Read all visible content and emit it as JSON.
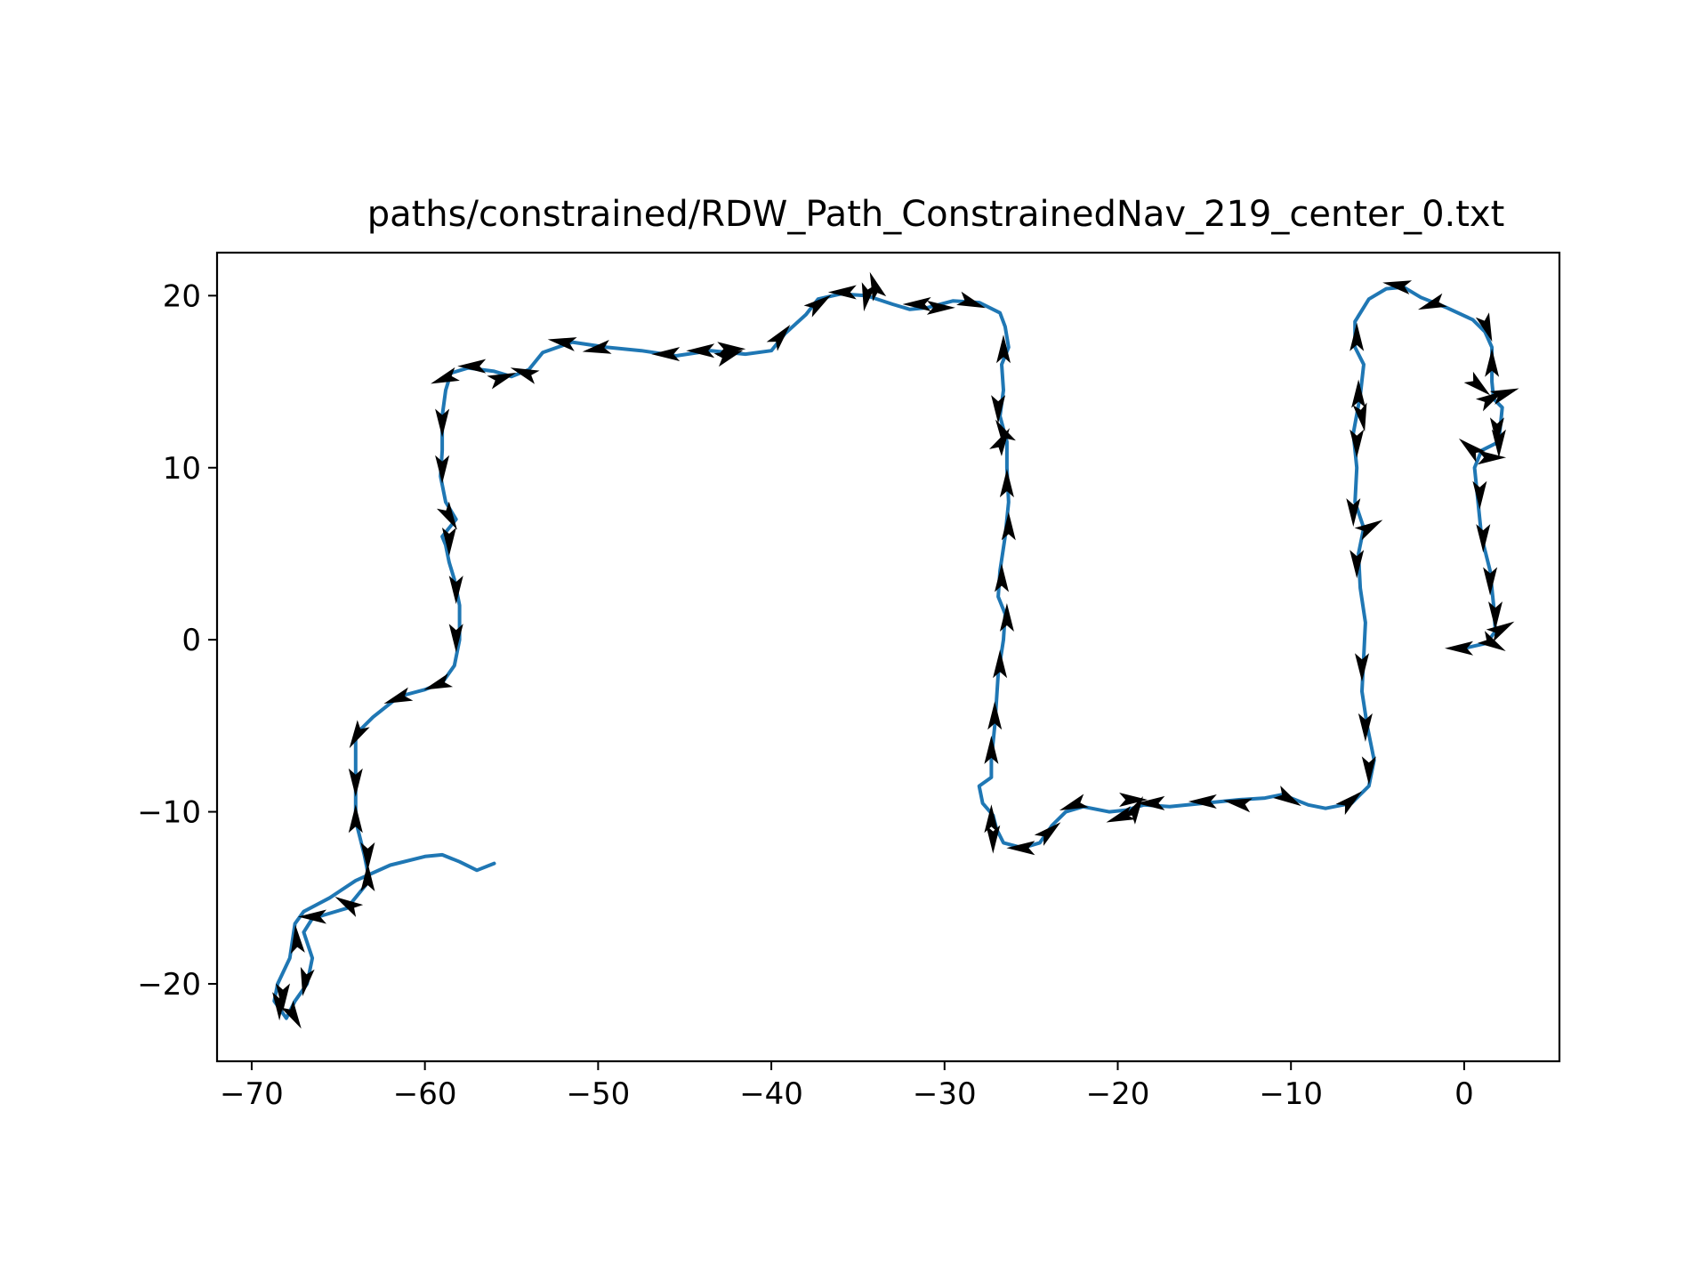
{
  "chart_data": {
    "type": "line",
    "title": "paths/constrained/RDW_Path_ConstrainedNav_219_center_0.txt",
    "xlabel": "",
    "ylabel": "",
    "xlim": [
      -72,
      5.5
    ],
    "ylim": [
      -24.5,
      22.5
    ],
    "xticks": [
      -70,
      -60,
      -50,
      -40,
      -30,
      -20,
      -10,
      0
    ],
    "yticks": [
      -20,
      -10,
      0,
      10,
      20
    ],
    "xtick_labels": [
      "−70",
      "−60",
      "−50",
      "−40",
      "−30",
      "−20",
      "−10",
      "0"
    ],
    "ytick_labels": [
      "−20",
      "−10",
      "0",
      "10",
      "20"
    ],
    "grid": false,
    "line_color": "#1f77b4",
    "arrow_color": "#000000",
    "series": [
      {
        "path": [
          [
            -56,
            -13
          ],
          [
            -57,
            -13.4
          ],
          [
            -58,
            -12.9
          ],
          [
            -59,
            -12.5
          ],
          [
            -60,
            -12.6
          ],
          [
            -62,
            -13.1
          ],
          [
            -64,
            -14
          ],
          [
            -65.5,
            -15
          ],
          [
            -67,
            -15.8
          ],
          [
            -67.5,
            -16.5
          ],
          [
            -67.8,
            -18.5
          ],
          [
            -68.5,
            -20
          ],
          [
            -68.7,
            -21
          ],
          [
            -68,
            -22
          ],
          [
            -67.5,
            -21
          ],
          [
            -66.8,
            -20
          ],
          [
            -66.5,
            -18.5
          ],
          [
            -67,
            -17
          ],
          [
            -66.5,
            -16.2
          ],
          [
            -64.5,
            -15.6
          ],
          [
            -63.2,
            -14
          ],
          [
            -63.5,
            -12.5
          ],
          [
            -64,
            -10.5
          ],
          [
            -64,
            -9
          ],
          [
            -64,
            -7
          ],
          [
            -64,
            -5.5
          ],
          [
            -63,
            -4.5
          ],
          [
            -61.5,
            -3.3
          ],
          [
            -60,
            -2.9
          ],
          [
            -59,
            -2.5
          ],
          [
            -58.3,
            -1.5
          ],
          [
            -58,
            0
          ],
          [
            -58,
            2
          ],
          [
            -58.3,
            3.5
          ],
          [
            -58.6,
            4.5
          ],
          [
            -58.8,
            5.5
          ],
          [
            -59,
            6
          ],
          [
            -58.2,
            7
          ],
          [
            -58.8,
            8
          ],
          [
            -59.1,
            9.5
          ],
          [
            -59,
            11
          ],
          [
            -59,
            13
          ],
          [
            -58.8,
            14.5
          ],
          [
            -58.5,
            15.5
          ],
          [
            -57.5,
            15.8
          ],
          [
            -56,
            15.6
          ],
          [
            -55,
            15.3
          ],
          [
            -54,
            15.7
          ],
          [
            -53.2,
            16.7
          ],
          [
            -51.5,
            17.3
          ],
          [
            -49.5,
            17
          ],
          [
            -47.5,
            16.8
          ],
          [
            -45.5,
            16.5
          ],
          [
            -43.5,
            16.8
          ],
          [
            -41.5,
            16.6
          ],
          [
            -40,
            16.8
          ],
          [
            -39.2,
            17.8
          ],
          [
            -38,
            18.9
          ],
          [
            -37.3,
            19.8
          ],
          [
            -36,
            20.1
          ],
          [
            -34.5,
            20
          ],
          [
            -33,
            19.5
          ],
          [
            -32,
            19.2
          ],
          [
            -31,
            19.3
          ],
          [
            -29.5,
            19.7
          ],
          [
            -28,
            19.6
          ],
          [
            -26.8,
            19
          ],
          [
            -26.5,
            18.2
          ],
          [
            -26.3,
            17
          ],
          [
            -26.7,
            16
          ],
          [
            -26.6,
            14.5
          ],
          [
            -26.8,
            13
          ],
          [
            -26.4,
            11.5
          ],
          [
            -26.4,
            10
          ],
          [
            -26.3,
            8
          ],
          [
            -26.5,
            6
          ],
          [
            -26.8,
            4
          ],
          [
            -26.9,
            2.5
          ],
          [
            -26.5,
            1.5
          ],
          [
            -26.6,
            0
          ],
          [
            -26.9,
            -2
          ],
          [
            -27,
            -3.5
          ],
          [
            -27.1,
            -5
          ],
          [
            -27.3,
            -7
          ],
          [
            -27.3,
            -8
          ],
          [
            -28,
            -8.5
          ],
          [
            -27.8,
            -9.5
          ],
          [
            -27.2,
            -10.2
          ],
          [
            -27,
            -11
          ],
          [
            -26.6,
            -11.8
          ],
          [
            -25.5,
            -12.1
          ],
          [
            -24.5,
            -11.8
          ],
          [
            -23.8,
            -10.8
          ],
          [
            -23,
            -10
          ],
          [
            -22,
            -9.7
          ],
          [
            -20.5,
            -10
          ],
          [
            -19.5,
            -9.9
          ],
          [
            -18.5,
            -9.6
          ],
          [
            -17,
            -9.7
          ],
          [
            -15,
            -9.5
          ],
          [
            -13,
            -9.3
          ],
          [
            -11.5,
            -9.2
          ],
          [
            -10.5,
            -9
          ],
          [
            -9,
            -9.6
          ],
          [
            -8,
            -9.8
          ],
          [
            -6.5,
            -9.5
          ],
          [
            -5.5,
            -8.5
          ],
          [
            -5.2,
            -7
          ],
          [
            -5.6,
            -5
          ],
          [
            -5.9,
            -3
          ],
          [
            -5.8,
            -1
          ],
          [
            -5.7,
            1
          ],
          [
            -6,
            3
          ],
          [
            -6.1,
            5
          ],
          [
            -5.8,
            6.5
          ],
          [
            -6.3,
            8
          ],
          [
            -6.2,
            10
          ],
          [
            -6.4,
            12
          ],
          [
            -6,
            14.2
          ],
          [
            -5.8,
            16
          ],
          [
            -6.3,
            17
          ],
          [
            -6.3,
            18.5
          ],
          [
            -5.5,
            19.8
          ],
          [
            -4.5,
            20.4
          ],
          [
            -3.5,
            20.5
          ],
          [
            -2.5,
            19.9
          ],
          [
            -1,
            19.3
          ],
          [
            0.5,
            18.6
          ],
          [
            1.2,
            17.9
          ],
          [
            1.6,
            17
          ],
          [
            1.6,
            15
          ],
          [
            1.7,
            14
          ],
          [
            2.2,
            13.5
          ],
          [
            2,
            11.5
          ],
          [
            1,
            11
          ],
          [
            0.6,
            10
          ],
          [
            0.8,
            8
          ],
          [
            1,
            6
          ],
          [
            1.5,
            4
          ],
          [
            1.7,
            2
          ],
          [
            1.8,
            0.5
          ],
          [
            1.3,
            -0.2
          ],
          [
            0,
            -0.5
          ]
        ]
      }
    ],
    "arrows": [
      [
        -68.2,
        -20.7,
        -90
      ],
      [
        -68.4,
        -21.2,
        270
      ],
      [
        -67.6,
        -21.8,
        300
      ],
      [
        -66.9,
        -19.8,
        260
      ],
      [
        -67.4,
        -17.5,
        95
      ],
      [
        -66.4,
        -16.1,
        180
      ],
      [
        -64.4,
        -15.4,
        150
      ],
      [
        -63.3,
        -13.9,
        90
      ],
      [
        -63.3,
        -12.5,
        270
      ],
      [
        -64,
        -10.5,
        90
      ],
      [
        -64,
        -8.2,
        270
      ],
      [
        -63.9,
        -5.5,
        240
      ],
      [
        -61.5,
        -3.4,
        200
      ],
      [
        -59.2,
        -2.6,
        200
      ],
      [
        -58.2,
        0.2,
        270
      ],
      [
        -58.2,
        3,
        270
      ],
      [
        -58.6,
        5.8,
        270
      ],
      [
        -58.6,
        7.2,
        300
      ],
      [
        -59,
        10,
        270
      ],
      [
        -59,
        12.7,
        270
      ],
      [
        -58.8,
        15.2,
        200
      ],
      [
        -57.2,
        15.9,
        180
      ],
      [
        -54.2,
        15.5,
        160
      ],
      [
        -55.6,
        15.2,
        20
      ],
      [
        -52,
        17.3,
        170
      ],
      [
        -50,
        16.9,
        190
      ],
      [
        -46,
        16.6,
        180
      ],
      [
        -44,
        16.8,
        180
      ],
      [
        -42.5,
        16.5,
        20
      ],
      [
        -42.4,
        16.9,
        0
      ],
      [
        -39.5,
        17.6,
        50
      ],
      [
        -37.3,
        19.5,
        35
      ],
      [
        -35.8,
        20.2,
        180
      ],
      [
        -34.5,
        20,
        260
      ],
      [
        -34,
        20.5,
        110
      ],
      [
        -31.5,
        19.5,
        180
      ],
      [
        -30.3,
        19.3,
        0
      ],
      [
        -28.5,
        19.6,
        340
      ],
      [
        -26.6,
        16.8,
        90
      ],
      [
        -26.9,
        13.5,
        270
      ],
      [
        -26.6,
        12,
        120
      ],
      [
        -26.7,
        11.5,
        60
      ],
      [
        -26.4,
        9,
        90
      ],
      [
        -26.3,
        6.5,
        90
      ],
      [
        -26.7,
        3.5,
        90
      ],
      [
        -26.4,
        1.2,
        90
      ],
      [
        -26.8,
        -1.5,
        90
      ],
      [
        -27.1,
        -4.5,
        90
      ],
      [
        -27.3,
        -6.5,
        90
      ],
      [
        -27.3,
        -10.5,
        90
      ],
      [
        -27.2,
        -11.5,
        270
      ],
      [
        -25.5,
        -12.1,
        180
      ],
      [
        -24,
        -11.2,
        40
      ],
      [
        -22.5,
        -9.6,
        200
      ],
      [
        -19.8,
        -10.3,
        200
      ],
      [
        -19.2,
        -9.3,
        0
      ],
      [
        -19,
        -9.9,
        60
      ],
      [
        -18,
        -9.5,
        180
      ],
      [
        -15,
        -9.4,
        180
      ],
      [
        -13,
        -9.5,
        170
      ],
      [
        -10.2,
        -9.2,
        330
      ],
      [
        -6.6,
        -9.4,
        40
      ],
      [
        -5.5,
        -7.5,
        270
      ],
      [
        -5.7,
        -5,
        270
      ],
      [
        -5.9,
        -1.5,
        270
      ],
      [
        -6.2,
        4.5,
        270
      ],
      [
        -5.5,
        6.5,
        30
      ],
      [
        -6.4,
        7.5,
        270
      ],
      [
        -6.2,
        11.5,
        270
      ],
      [
        -5.9,
        13,
        280
      ],
      [
        -6.1,
        14.2,
        90
      ],
      [
        -6.2,
        17.5,
        90
      ],
      [
        -3.8,
        20.6,
        170
      ],
      [
        -1.8,
        19.5,
        200
      ],
      [
        1.3,
        18.2,
        290
      ],
      [
        1.6,
        16,
        90
      ],
      [
        0.8,
        14.8,
        320
      ],
      [
        1.5,
        14,
        30
      ],
      [
        2.3,
        14.3,
        20
      ],
      [
        1.9,
        12.2,
        270
      ],
      [
        2,
        11.5,
        270
      ],
      [
        0.4,
        11.1,
        140
      ],
      [
        1.5,
        10.6,
        0
      ],
      [
        0.9,
        8.5,
        270
      ],
      [
        1.1,
        6,
        270
      ],
      [
        1.5,
        3.5,
        270
      ],
      [
        1.8,
        1.5,
        270
      ],
      [
        2.1,
        0.6,
        30
      ],
      [
        1.6,
        -0.2,
        330
      ],
      [
        -0.2,
        -0.5,
        180
      ]
    ]
  }
}
